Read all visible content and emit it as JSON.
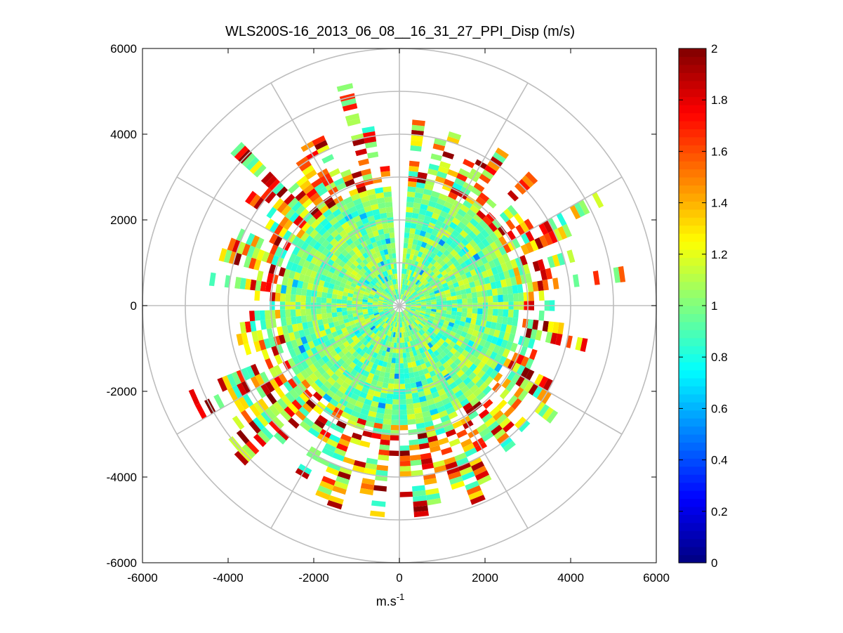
{
  "chart_data": {
    "type": "heatmap",
    "subtype": "polar-ppi",
    "title": "WLS200S-16_2013_06_08__16_31_27_PPI_Disp (m/s)",
    "xlabel_base": "m.s",
    "xlabel_exp": "-1",
    "ylabel": "",
    "xlim": [
      -6000,
      6000
    ],
    "ylim": [
      -6000,
      6000
    ],
    "xticks": [
      -6000,
      -4000,
      -2000,
      0,
      2000,
      4000,
      6000
    ],
    "yticks": [
      -6000,
      -4000,
      -2000,
      0,
      2000,
      4000,
      6000
    ],
    "xtick_labels": [
      "-6000",
      "-4000",
      "-2000",
      "0",
      "2000",
      "4000",
      "6000"
    ],
    "ytick_labels": [
      "-6000",
      "-4000",
      "-2000",
      "0",
      "2000",
      "4000",
      "6000"
    ],
    "polar_rings": [
      1000,
      2000,
      3000,
      4000,
      5000,
      6000
    ],
    "polar_spokes_deg": [
      0,
      30,
      60,
      90,
      120,
      150,
      180,
      210,
      240,
      270,
      300,
      330
    ],
    "colorbar": {
      "min": 0,
      "max": 2,
      "colormap": "jet",
      "ticks": [
        0,
        0.2,
        0.4,
        0.6,
        0.8,
        1,
        1.2,
        1.4,
        1.6,
        1.8,
        2
      ],
      "tick_labels": [
        "0",
        "0.2",
        "0.4",
        "0.6",
        "0.8",
        "1",
        "1.2",
        "1.4",
        "1.6",
        "1.8",
        "2"
      ]
    },
    "data_description": {
      "core_radius_m": 2700,
      "typical_value": 1.0,
      "typical_value_range": [
        0.8,
        1.2
      ],
      "outer_extent_range_m": [
        3200,
        5400
      ],
      "outer_value_range": [
        1.2,
        2.0
      ],
      "missing_sector_deg": [
        -5,
        5
      ],
      "dense_lobes_deg": [
        [
          60,
          85
        ],
        [
          150,
          175
        ],
        [
          185,
          215
        ],
        [
          225,
          250
        ],
        [
          300,
          320
        ],
        [
          335,
          355
        ]
      ]
    }
  }
}
